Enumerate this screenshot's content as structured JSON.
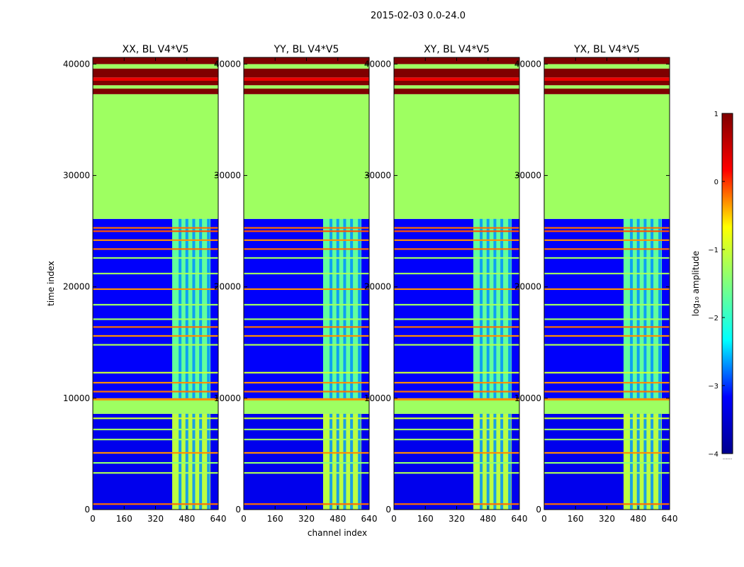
{
  "figure_title": "2015-02-03 0.0-24.0",
  "xlabel": "channel index",
  "ylabel": "time index",
  "colorbar": {
    "label": "log₁₀ amplitude",
    "ticks": [
      "1",
      "0",
      "−1",
      "−2",
      "−3",
      "−4"
    ],
    "tick_values": [
      1,
      0,
      -1,
      -2,
      -3,
      -4
    ],
    "range": [
      -4,
      1
    ],
    "under_mark": "......",
    "colors": [
      "#00008f",
      "#0000ff",
      "#00ffff",
      "#7fff7f",
      "#ffff00",
      "#ff0000",
      "#7f0000"
    ]
  },
  "chart_data": {
    "type": "heatmap",
    "title": "2015-02-03 0.0-24.0",
    "xlabel": "channel index",
    "ylabel": "time index",
    "xlim": [
      0,
      640
    ],
    "ylim": [
      0,
      40600
    ],
    "xticks": [
      0,
      160,
      320,
      480,
      640
    ],
    "yticks": [
      0,
      10000,
      20000,
      30000,
      40000
    ],
    "xtick_labels": [
      "0",
      "160",
      "320",
      "480",
      "640"
    ],
    "ytick_labels": [
      "0",
      "10000",
      "20000",
      "30000",
      "40000"
    ],
    "colorbar_range": [
      -4,
      1
    ],
    "panels": [
      {
        "title": "XX, BL V4*V5"
      },
      {
        "title": "YY, BL V4*V5"
      },
      {
        "title": "XY, BL V4*V5"
      },
      {
        "title": "YX, BL V4*V5"
      }
    ],
    "regions": [
      {
        "t0": 0,
        "t1": 8600,
        "c0": 0,
        "c1": 640,
        "value": -3.3,
        "note": "background noise"
      },
      {
        "t0": 0,
        "t1": 8600,
        "c0": 405,
        "c1": 600,
        "value": -1.1,
        "note": "RFI channel block"
      },
      {
        "t0": 8600,
        "t1": 9800,
        "c0": 0,
        "c1": 640,
        "value": -1.3,
        "note": "flagged"
      },
      {
        "t0": 9800,
        "t1": 10000,
        "c0": 0,
        "c1": 640,
        "value": -0.3
      },
      {
        "t0": 10000,
        "t1": 26100,
        "c0": 0,
        "c1": 640,
        "value": -3.2,
        "note": "background noise"
      },
      {
        "t0": 10000,
        "t1": 26100,
        "c0": 405,
        "c1": 600,
        "value": -1.7,
        "note": "RFI channel block"
      },
      {
        "t0": 26100,
        "t1": 37300,
        "c0": 0,
        "c1": 640,
        "value": -1.3,
        "note": "flagged"
      },
      {
        "t0": 37300,
        "t1": 37800,
        "c0": 0,
        "c1": 640,
        "value": 1.0
      },
      {
        "t0": 37800,
        "t1": 38100,
        "c0": 0,
        "c1": 640,
        "value": -1.3
      },
      {
        "t0": 38100,
        "t1": 38500,
        "c0": 0,
        "c1": 640,
        "value": 1.0
      },
      {
        "t0": 38500,
        "t1": 38800,
        "c0": 0,
        "c1": 640,
        "value": 0.3
      },
      {
        "t0": 38800,
        "t1": 39600,
        "c0": 0,
        "c1": 640,
        "value": 1.0
      },
      {
        "t0": 39600,
        "t1": 40000,
        "c0": 0,
        "c1": 640,
        "value": -1.3
      },
      {
        "t0": 40000,
        "t1": 40600,
        "c0": 0,
        "c1": 640,
        "value": 1.0
      }
    ],
    "horizontal_lines": [
      {
        "t": 500,
        "value": -0.2
      },
      {
        "t": 3300,
        "value": -1.2
      },
      {
        "t": 4200,
        "value": -1.4
      },
      {
        "t": 5100,
        "value": -0.3
      },
      {
        "t": 6300,
        "value": -1.3
      },
      {
        "t": 7200,
        "value": -1.3
      },
      {
        "t": 8200,
        "value": -1.0
      },
      {
        "t": 10600,
        "value": -0.2
      },
      {
        "t": 11400,
        "value": -0.3
      },
      {
        "t": 12300,
        "value": -1.0
      },
      {
        "t": 14800,
        "value": -1.2
      },
      {
        "t": 15600,
        "value": -0.3
      },
      {
        "t": 16400,
        "value": -0.2
      },
      {
        "t": 17100,
        "value": -1.3
      },
      {
        "t": 18400,
        "value": -1.3
      },
      {
        "t": 19800,
        "value": -0.3
      },
      {
        "t": 21200,
        "value": -1.3
      },
      {
        "t": 22600,
        "value": -1.3
      },
      {
        "t": 23400,
        "value": -0.2
      },
      {
        "t": 24200,
        "value": -0.3
      },
      {
        "t": 25000,
        "value": -0.1
      },
      {
        "t": 25300,
        "value": -0.2
      }
    ],
    "channel_lines": [
      445,
      480,
      515,
      550,
      590
    ]
  }
}
